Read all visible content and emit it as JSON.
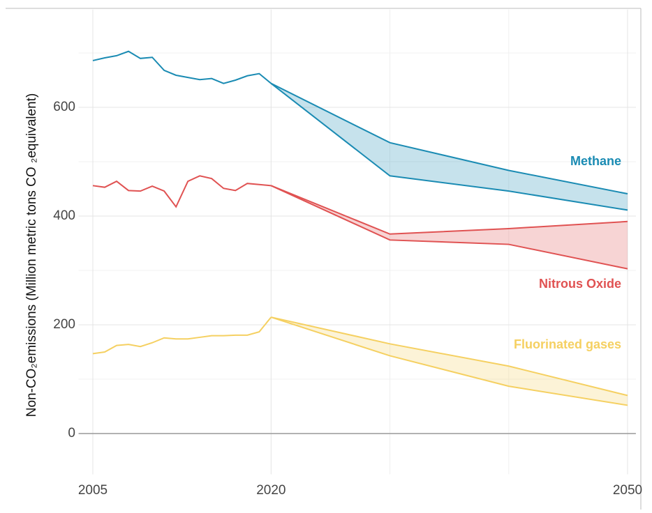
{
  "chart_data": {
    "type": "line",
    "y_label": "Non-CO₂emissions (Million metric tons CO ₂equivalent)",
    "xlim": [
      2003.8,
      2050.7
    ],
    "xticks": [
      2005,
      2020,
      2050
    ],
    "x_minor_ticks": [
      2030,
      2040
    ],
    "ylim": [
      -75,
      780
    ],
    "yticks": [
      0,
      200,
      400,
      600
    ],
    "y_minor_ticks": [
      100,
      300,
      500,
      700
    ],
    "grid": true,
    "series": [
      {
        "name": "Methane",
        "color": "#1a8bb3",
        "x": [
          2005,
          2006,
          2007,
          2008,
          2009,
          2010,
          2011,
          2012,
          2013,
          2014,
          2015,
          2016,
          2017,
          2018,
          2019,
          2020
        ],
        "values": [
          686,
          691,
          695,
          703,
          690,
          692,
          668,
          659,
          655,
          651,
          653,
          644,
          650,
          658,
          662,
          644
        ],
        "projection": {
          "x": [
            2020,
            2030,
            2040,
            2050
          ],
          "high": [
            644,
            535,
            484,
            441
          ],
          "low": [
            644,
            474,
            446,
            411
          ]
        }
      },
      {
        "name": "Nitrous Oxide",
        "color": "#e05252",
        "x": [
          2005,
          2006,
          2007,
          2008,
          2009,
          2010,
          2011,
          2012,
          2013,
          2014,
          2015,
          2016,
          2017,
          2018,
          2019,
          2020
        ],
        "values": [
          456,
          453,
          464,
          447,
          446,
          455,
          446,
          417,
          464,
          474,
          469,
          451,
          447,
          460,
          458,
          456
        ],
        "projection": {
          "x": [
            2020,
            2030,
            2040,
            2050
          ],
          "high": [
            456,
            367,
            377,
            390
          ],
          "low": [
            456,
            356,
            348,
            303
          ]
        }
      },
      {
        "name": "Fluorinated gases",
        "color": "#f5d061",
        "x": [
          2005,
          2006,
          2007,
          2008,
          2009,
          2010,
          2011,
          2012,
          2013,
          2014,
          2015,
          2016,
          2017,
          2018,
          2019,
          2020
        ],
        "values": [
          147,
          150,
          162,
          164,
          160,
          167,
          176,
          174,
          174,
          177,
          180,
          180,
          181,
          181,
          187,
          214
        ],
        "projection": {
          "x": [
            2020,
            2030,
            2040,
            2050
          ],
          "high": [
            214,
            165,
            124,
            70
          ],
          "low": [
            214,
            143,
            87,
            52
          ]
        }
      }
    ]
  }
}
